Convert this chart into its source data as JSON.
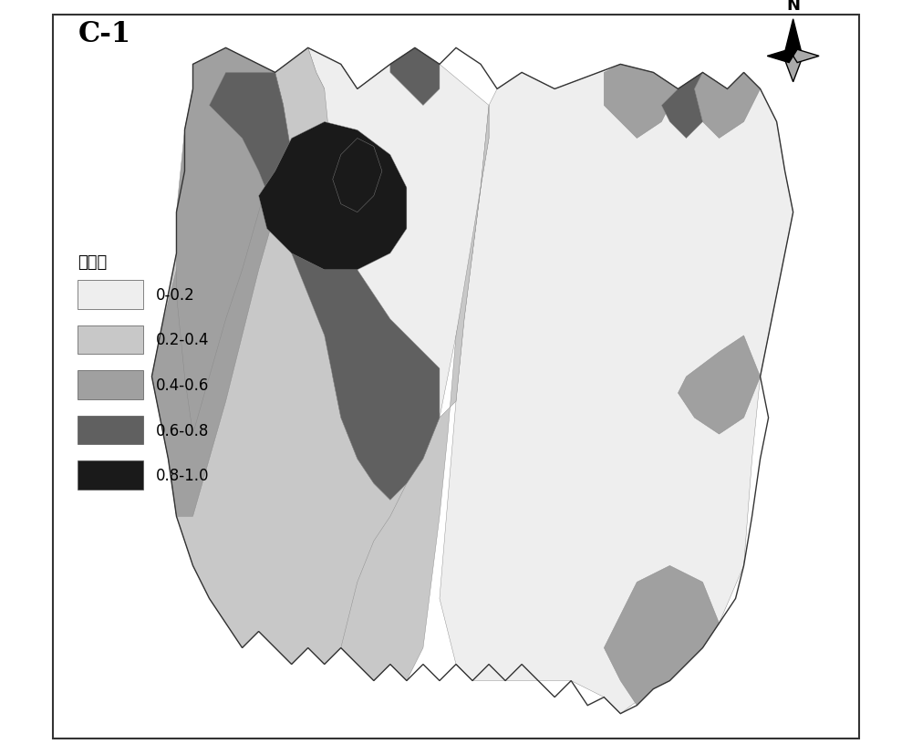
{
  "title": "C-1",
  "legend_title": "隶属度",
  "legend_labels": [
    "0-0.2",
    "0.2-0.4",
    "0.4-0.6",
    "0.6-0.8",
    "0.8-1.0"
  ],
  "colors": {
    "level0": "#eeeeee",
    "level1": "#c8c8c8",
    "level2": "#a0a0a0",
    "level3": "#606060",
    "level4": "#1a1a1a"
  },
  "bg": "#ffffff",
  "title_fontsize": 22,
  "legend_fontsize": 12,
  "legend_title_fontsize": 13
}
